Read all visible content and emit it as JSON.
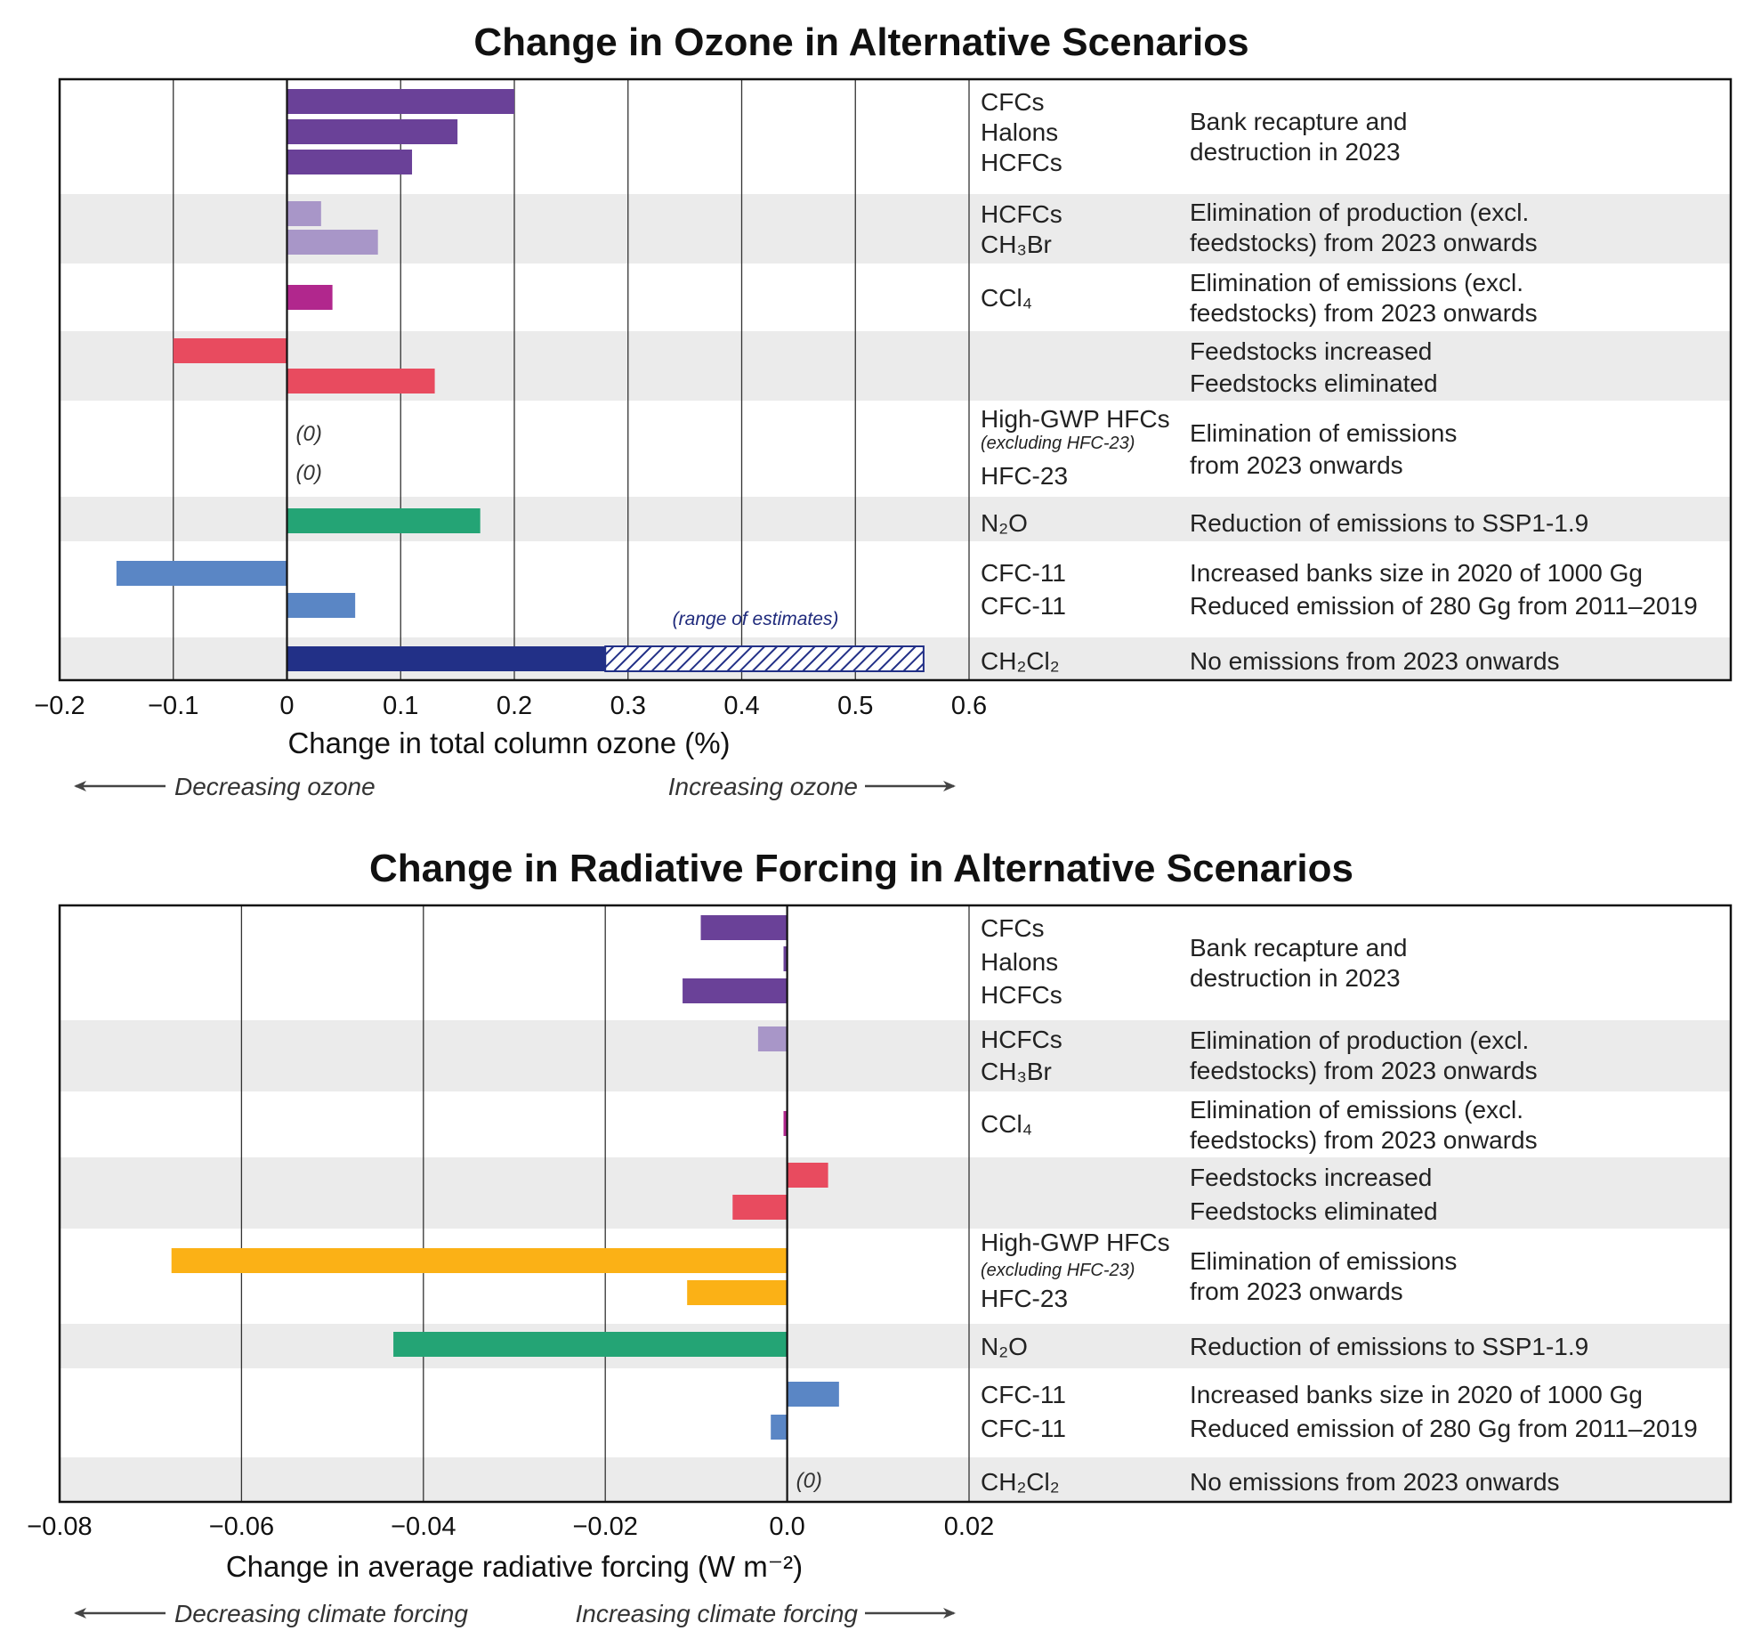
{
  "chart_data": [
    {
      "type": "bar",
      "title": "Change in Ozone in Alternative Scenarios",
      "xlabel": "Change in total column ozone (%)",
      "xlim": [
        -0.2,
        0.6
      ],
      "xticks": [
        "−0.2",
        "−0.1",
        "0",
        "0.1",
        "0.2",
        "0.3",
        "0.4",
        "0.5",
        "0.6"
      ],
      "direction_left": "Decreasing ozone",
      "direction_right": "Increasing ozone",
      "range_note": "(range of estimates)",
      "groups": [
        {
          "scenario_lines": [
            "Bank recapture and",
            "destruction in 2023"
          ],
          "shaded": false,
          "bars": [
            {
              "label": "CFCs",
              "value": 0.2,
              "color": "#6a4198"
            },
            {
              "label": "Halons",
              "value": 0.15,
              "color": "#6a4198"
            },
            {
              "label": "HCFCs",
              "value": 0.11,
              "color": "#6a4198"
            }
          ]
        },
        {
          "scenario_lines": [
            "Elimination of  production (excl.",
            "feedstocks) from 2023 onwards"
          ],
          "shaded": true,
          "bars": [
            {
              "label": "HCFCs",
              "value": 0.03,
              "color": "#a896c8"
            },
            {
              "label": "CH₃Br",
              "value": 0.08,
              "color": "#a896c8"
            }
          ]
        },
        {
          "scenario_lines": [
            "Elimination of emissions (excl.",
            "feedstocks) from 2023 onwards"
          ],
          "shaded": false,
          "bars": [
            {
              "label": "CCl₄",
              "value": 0.04,
              "color": "#b1278d"
            }
          ]
        },
        {
          "scenario_lines": [
            "Feedstocks increased",
            "Feedstocks eliminated"
          ],
          "shaded": true,
          "bars": [
            {
              "label": "",
              "value": -0.1,
              "color": "#e84b5f"
            },
            {
              "label": "",
              "value": 0.13,
              "color": "#e84b5f"
            }
          ]
        },
        {
          "scenario_lines": [
            "Elimination of emissions",
            "from 2023 onwards"
          ],
          "shaded": false,
          "bars": [
            {
              "label": "High-GWP HFCs",
              "sublabel": "(excluding HFC-23)",
              "value": 0,
              "zero_text": "(0)",
              "color": "#fbb116"
            },
            {
              "label": "HFC-23",
              "value": 0,
              "zero_text": "(0)",
              "color": "#fbb116"
            }
          ]
        },
        {
          "scenario_lines": [
            "Reduction of emissions to SSP1-1.9"
          ],
          "shaded": true,
          "bars": [
            {
              "label": "N₂O",
              "value": 0.17,
              "color": "#24a475"
            }
          ]
        },
        {
          "scenario_lines": [
            "Increased banks size in 2020 of 1000 Gg",
            "Reduced emission of 280 Gg from 2011–2019"
          ],
          "shaded": false,
          "bars": [
            {
              "label": "CFC-11",
              "value": -0.15,
              "color": "#5a86c5"
            },
            {
              "label": "CFC-11",
              "value": 0.06,
              "color": "#5a86c5"
            }
          ]
        },
        {
          "scenario_lines": [
            "No emissions from 2023 onwards"
          ],
          "shaded": true,
          "bars": [
            {
              "label": "CH₂Cl₂",
              "value": 0.28,
              "range_max": 0.56,
              "color": "#223087"
            }
          ]
        }
      ]
    },
    {
      "type": "bar",
      "title": "Change in Radiative Forcing in Alternative Scenarios",
      "xlabel": "Change in average radiative forcing (W m⁻²)",
      "xlim": [
        -0.08,
        0.02
      ],
      "xticks": [
        "−0.08",
        "−0.06",
        "−0.04",
        "−0.02",
        "0.0",
        "0.02"
      ],
      "direction_left": "Decreasing climate forcing",
      "direction_right": "Increasing climate forcing",
      "groups": [
        {
          "scenario_lines": [
            "Bank recapture and",
            "destruction in 2023"
          ],
          "shaded": false,
          "bars": [
            {
              "label": "CFCs",
              "value": -0.0095,
              "color": "#6a4198"
            },
            {
              "label": "Halons",
              "value": -0.0004,
              "color": "#6a4198"
            },
            {
              "label": "HCFCs",
              "value": -0.0115,
              "color": "#6a4198"
            }
          ]
        },
        {
          "scenario_lines": [
            "Elimination of production (excl.",
            "feedstocks) from 2023 onwards"
          ],
          "shaded": true,
          "bars": [
            {
              "label": "HCFCs",
              "value": -0.0032,
              "color": "#a896c8"
            },
            {
              "label": "CH₃Br",
              "value": 0,
              "color": "#a896c8"
            }
          ]
        },
        {
          "scenario_lines": [
            "Elimination of emissions (excl.",
            "feedstocks) from 2023 onwards"
          ],
          "shaded": false,
          "bars": [
            {
              "label": "CCl₄",
              "value": -0.0004,
              "color": "#b1278d"
            }
          ]
        },
        {
          "scenario_lines": [
            "Feedstocks increased",
            "Feedstocks eliminated"
          ],
          "shaded": true,
          "bars": [
            {
              "label": "",
              "value": 0.0045,
              "color": "#e84b5f"
            },
            {
              "label": "",
              "value": -0.006,
              "color": "#e84b5f"
            }
          ]
        },
        {
          "scenario_lines": [
            "Elimination of emissions",
            "from 2023 onwards"
          ],
          "shaded": false,
          "bars": [
            {
              "label": "High-GWP HFCs",
              "sublabel": "(excluding HFC-23)",
              "value": -0.0677,
              "color": "#fbb116"
            },
            {
              "label": "HFC-23",
              "value": -0.011,
              "color": "#fbb116"
            }
          ]
        },
        {
          "scenario_lines": [
            "Reduction of emissions to SSP1-1.9"
          ],
          "shaded": true,
          "bars": [
            {
              "label": "N₂O",
              "value": -0.0433,
              "color": "#24a475"
            }
          ]
        },
        {
          "scenario_lines": [
            "Increased banks size in 2020 of 1000 Gg",
            "Reduced emission of 280 Gg from 2011–2019"
          ],
          "shaded": false,
          "bars": [
            {
              "label": "CFC-11",
              "value": 0.0057,
              "color": "#5a86c5"
            },
            {
              "label": "CFC-11",
              "value": -0.0018,
              "color": "#5a86c5"
            }
          ]
        },
        {
          "scenario_lines": [
            "No emissions from 2023 onwards"
          ],
          "shaded": true,
          "bars": [
            {
              "label": "CH₂Cl₂",
              "value": 0,
              "zero_text": "(0)",
              "color": "#223087"
            }
          ]
        }
      ]
    }
  ]
}
